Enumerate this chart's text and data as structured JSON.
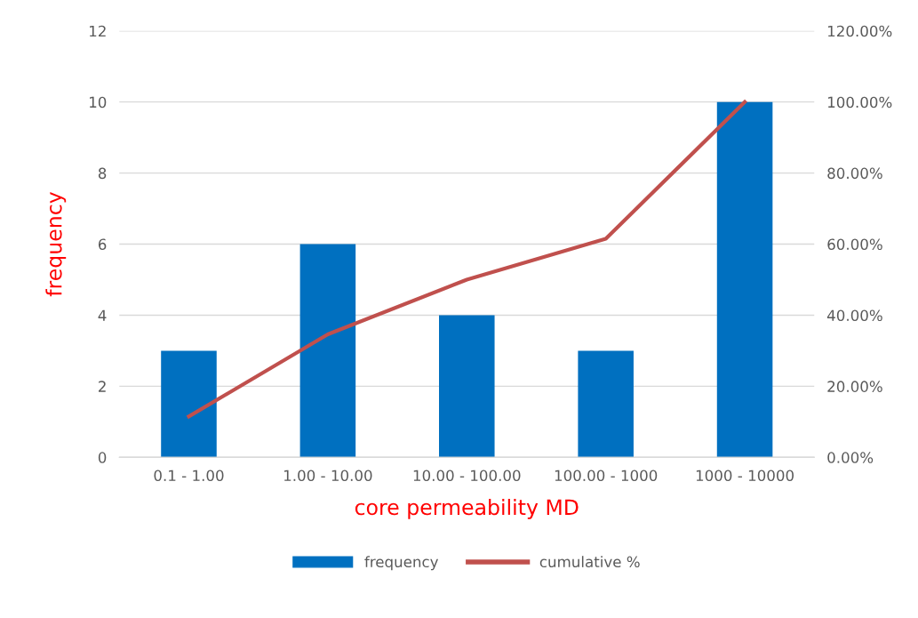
{
  "chart_data": {
    "type": "bar",
    "xlabel": "core permeability MD",
    "ylabel": "frequency",
    "categories": [
      "0.1 - 1.00",
      "1.00 - 10.00",
      "10.00 - 100.00",
      "100.00 - 1000",
      "1000 - 10000"
    ],
    "series": [
      {
        "name": "frequency",
        "color": "#0070c0",
        "values": [
          3,
          6,
          4,
          3,
          10
        ]
      },
      {
        "name": "cumulative %",
        "type": "line",
        "axis": "y2",
        "color": "#c0504d",
        "values": [
          11.5,
          34.6,
          50.0,
          61.5,
          100.0
        ]
      }
    ],
    "ylim": [
      0,
      12
    ],
    "yticks": [
      0,
      2,
      4,
      6,
      8,
      10,
      12
    ],
    "y2lim": [
      0,
      120
    ],
    "y2ticks": [
      {
        "value": 0,
        "label": "0.00%"
      },
      {
        "value": 20,
        "label": "20.00%"
      },
      {
        "value": 40,
        "label": "40.00%"
      },
      {
        "value": 60,
        "label": "60.00%"
      },
      {
        "value": 80,
        "label": "80.00%"
      },
      {
        "value": 100,
        "label": "100.00%"
      },
      {
        "value": 120,
        "label": "120.00%"
      }
    ],
    "grid": "y",
    "legend": "bottom",
    "marker": "none",
    "line_style": "solid"
  }
}
